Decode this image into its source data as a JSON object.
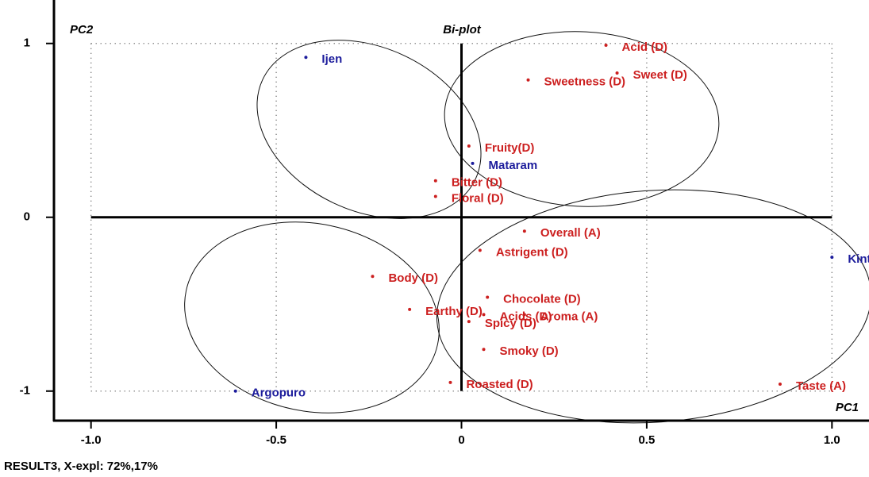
{
  "chart_data": {
    "type": "scatter",
    "title": "Bi-plot",
    "x_label": "PC1",
    "y_label": "PC2",
    "footer": "RESULT3, X-expl: 72%,17%",
    "xlim": [
      -1.1,
      1.1
    ],
    "ylim": [
      -1.17,
      1.25
    ],
    "xticks": [
      {
        "value": -1,
        "label": "-1.0"
      },
      -0.5,
      0,
      0.5,
      {
        "value": 1,
        "label": "1.0"
      }
    ],
    "yticks": [
      -1,
      0,
      1
    ],
    "grid": true,
    "series": [
      {
        "color": "#1c1c9c",
        "labels": [
          "Ijen",
          "Mataram",
          "Kintamani",
          "Argopuro"
        ],
        "x": [
          -0.42,
          0.03,
          1.0,
          -0.61
        ],
        "values": [
          0.92,
          0.31,
          -0.23,
          -1.0
        ]
      },
      {
        "color": "#cc1f1f",
        "labels": [
          "Acid (D)",
          "Sweet (D)",
          "Sweetness (D)",
          "Fruity(D)",
          "Bitter (D)",
          "Floral (D)",
          "Overall (A)",
          "Astrigent (D)",
          "Body (D)",
          "Chocolate (D)",
          "Earthy (D)",
          "Acids (D)",
          "Aroma (A)",
          "Spicy (D)",
          "Smoky (D)",
          "Roasted (D)",
          "Taste (A)"
        ],
        "x": [
          0.39,
          0.42,
          0.18,
          0.02,
          -0.07,
          -0.07,
          0.17,
          0.05,
          -0.24,
          0.07,
          -0.14,
          0.06,
          0.17,
          0.02,
          0.06,
          -0.03,
          0.86
        ],
        "values": [
          0.99,
          0.83,
          0.79,
          0.41,
          0.21,
          0.12,
          -0.08,
          -0.19,
          -0.34,
          -0.46,
          -0.53,
          -0.56,
          -0.56,
          -0.6,
          -0.76,
          -0.95,
          -0.96
        ]
      }
    ]
  }
}
